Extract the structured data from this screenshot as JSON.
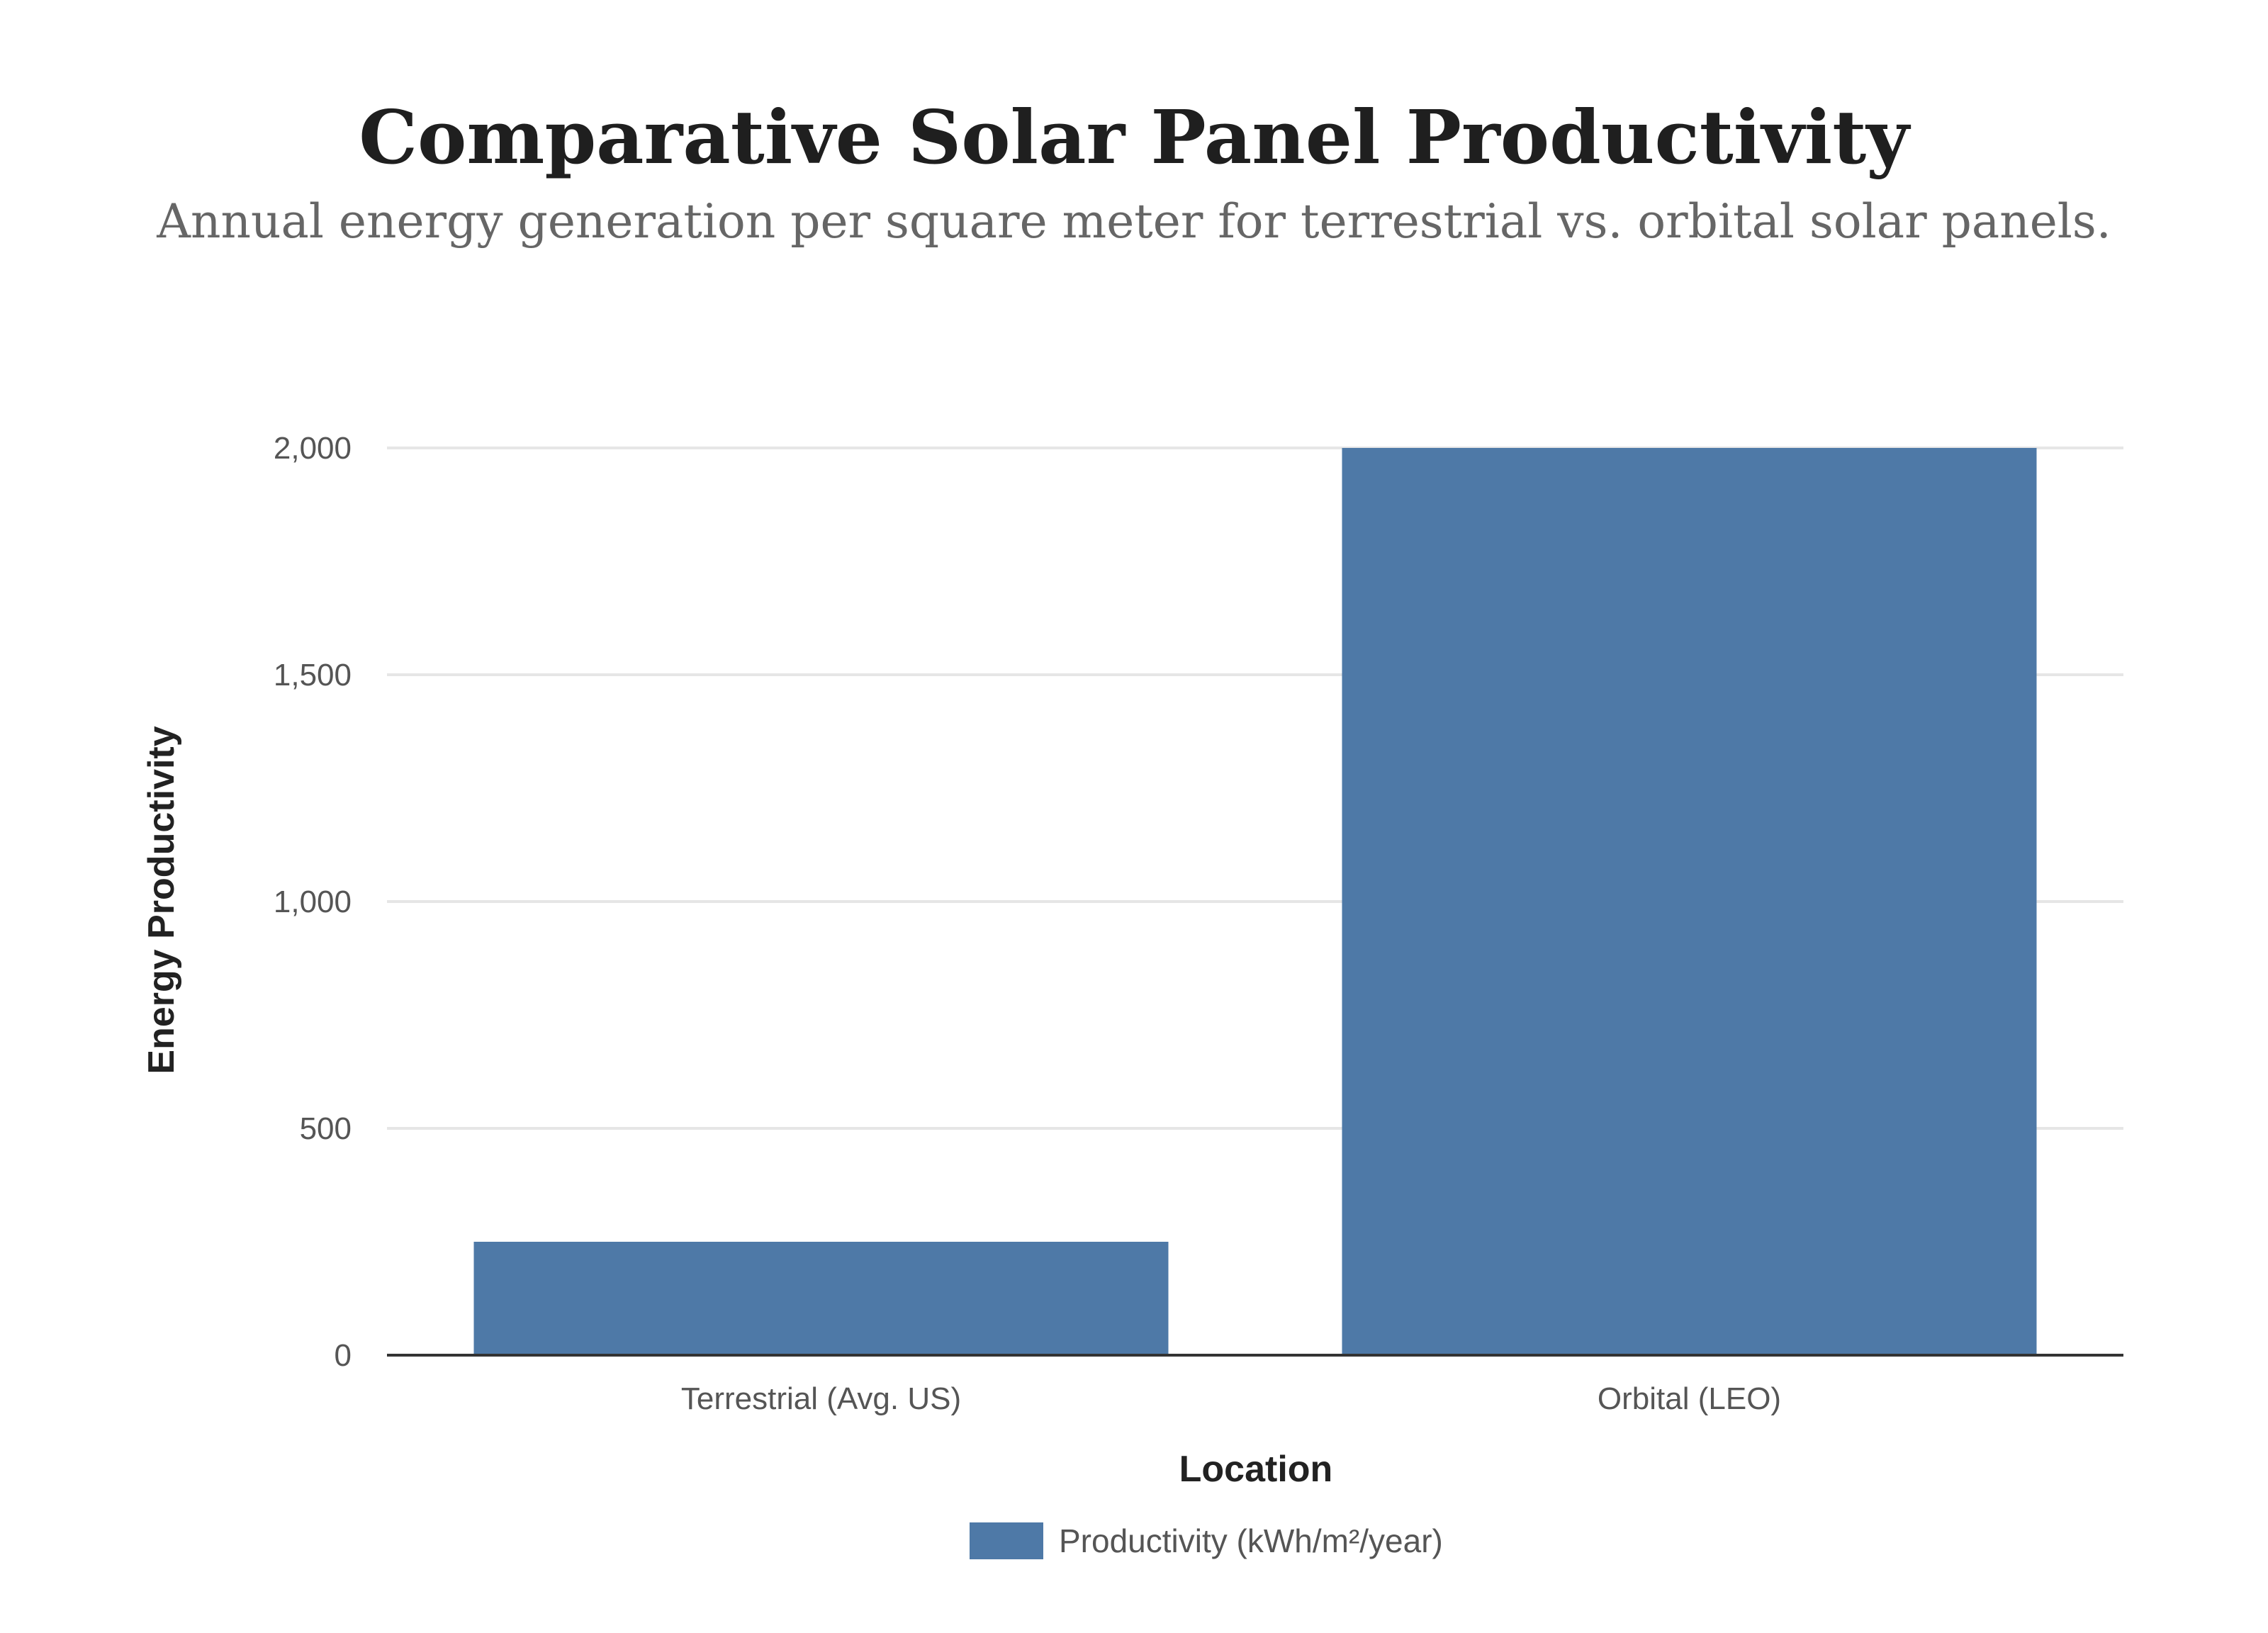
{
  "chart_data": {
    "type": "bar",
    "title": "Comparative Solar Panel Productivity",
    "subtitle": "Annual energy generation per square meter for terrestrial vs. orbital solar panels.",
    "categories": [
      "Terrestrial (Avg. US)",
      "Orbital (LEO)"
    ],
    "series": [
      {
        "name": "Productivity (kWh/m²/year)",
        "values": [
          250,
          2000
        ],
        "color": "#4e79a7"
      }
    ],
    "xlabel": "Location",
    "ylabel": "Energy Productivity",
    "ylim": [
      0,
      2000
    ],
    "yticks": [
      0,
      500,
      1000,
      1500,
      2000
    ],
    "ytick_labels": [
      "0",
      "500",
      "1,000",
      "1,500",
      "2,000"
    ],
    "grid": true,
    "legend_position": "bottom-center"
  }
}
